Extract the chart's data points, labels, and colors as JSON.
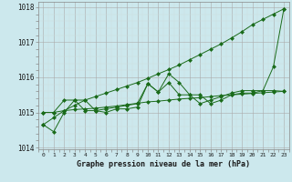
{
  "x": [
    0,
    1,
    2,
    3,
    4,
    5,
    6,
    7,
    8,
    9,
    10,
    11,
    12,
    13,
    14,
    15,
    16,
    17,
    18,
    19,
    20,
    21,
    22,
    23
  ],
  "line_noisy": [
    1014.65,
    1014.45,
    1015.0,
    1015.35,
    1015.35,
    1015.05,
    1015.0,
    1015.1,
    1015.1,
    1015.15,
    1015.82,
    1015.58,
    1016.1,
    1015.85,
    1015.5,
    1015.5,
    1015.25,
    1015.35,
    1015.5,
    1015.55,
    1015.55,
    1015.62,
    1016.3,
    1017.95
  ],
  "line_trend": [
    1014.65,
    1014.85,
    1015.05,
    1015.2,
    1015.35,
    1015.45,
    1015.55,
    1015.65,
    1015.75,
    1015.85,
    1015.97,
    1016.1,
    1016.22,
    1016.35,
    1016.5,
    1016.65,
    1016.8,
    1016.95,
    1017.12,
    1017.3,
    1017.5,
    1017.65,
    1017.8,
    1017.95
  ],
  "line_mid": [
    1015.0,
    1015.0,
    1015.35,
    1015.35,
    1015.05,
    1015.05,
    1015.1,
    1015.15,
    1015.2,
    1015.25,
    1015.82,
    1015.58,
    1015.85,
    1015.5,
    1015.5,
    1015.25,
    1015.35,
    1015.45,
    1015.55,
    1015.62,
    1015.62,
    1015.62,
    1015.62,
    1015.6
  ],
  "line_flat": [
    1015.0,
    1015.0,
    1015.05,
    1015.08,
    1015.1,
    1015.12,
    1015.15,
    1015.18,
    1015.22,
    1015.26,
    1015.3,
    1015.32,
    1015.35,
    1015.38,
    1015.4,
    1015.42,
    1015.45,
    1015.48,
    1015.5,
    1015.52,
    1015.54,
    1015.56,
    1015.58,
    1015.6
  ],
  "background_color": "#cce8ed",
  "grid_major_color": "#aaaaaa",
  "grid_minor_color": "#ccdddd",
  "line_color": "#1a6b1a",
  "xlabel": "Graphe pression niveau de la mer (hPa)",
  "ylim": [
    1013.95,
    1018.15
  ],
  "yticks": [
    1014,
    1015,
    1016,
    1017,
    1018
  ],
  "xlim": [
    -0.5,
    23.5
  ]
}
